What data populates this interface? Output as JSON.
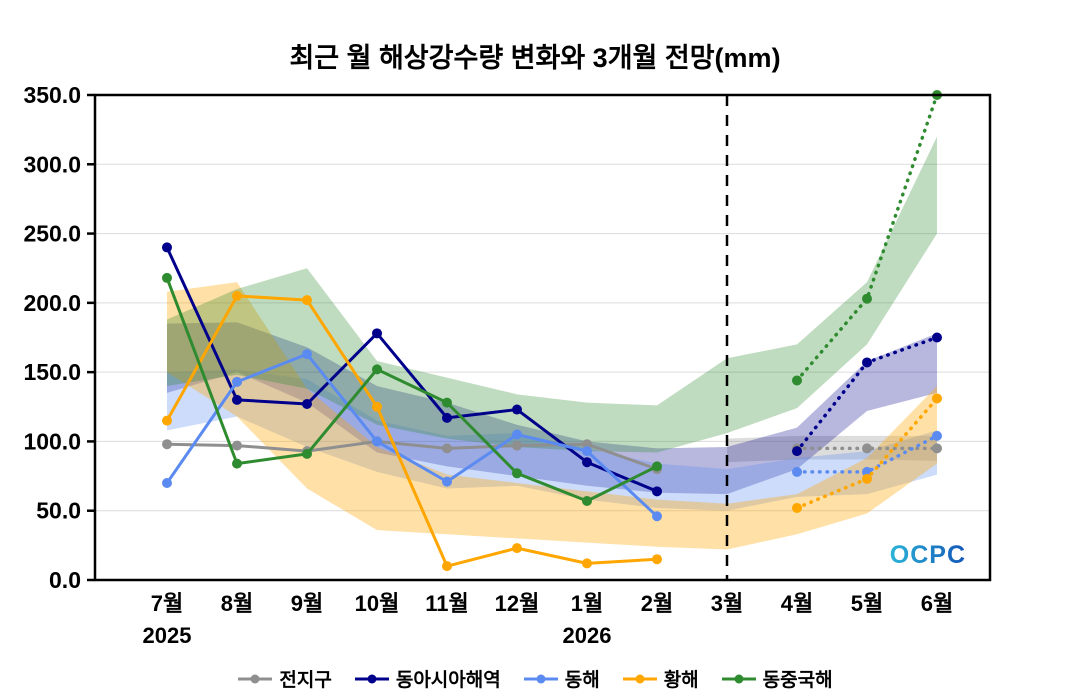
{
  "chart_data": {
    "type": "line",
    "title": "최근 월 해상강수량 변화와 3개월 전망(mm)",
    "ylim": [
      0,
      350
    ],
    "yticks": [
      0,
      50,
      100,
      150,
      200,
      250,
      300,
      350
    ],
    "ytick_labels": [
      "0.0",
      "50.0",
      "100.0",
      "150.0",
      "200.0",
      "250.0",
      "300.0",
      "350.0"
    ],
    "categories": [
      "7월",
      "8월",
      "9월",
      "10월",
      "11월",
      "12월",
      "1월",
      "2월",
      "3월",
      "4월",
      "5월",
      "6월"
    ],
    "year_labels": [
      {
        "index": 0,
        "label": "2025"
      },
      {
        "index": 6,
        "label": "2026"
      }
    ],
    "forecast_divider_index": 8,
    "observed_range": [
      0,
      7
    ],
    "forecast_range": [
      9,
      11
    ],
    "grid": true,
    "legend_position": "bottom",
    "watermark": "OCPC",
    "series": [
      {
        "key": "global",
        "name": "전지구",
        "color": "#8f8f8f",
        "band_opacity": 0.3,
        "values": [
          98,
          97,
          93,
          100,
          95,
          97,
          98,
          80,
          null,
          95,
          95,
          95
        ],
        "band": [
          null,
          null,
          null,
          null,
          null,
          null,
          null,
          null,
          [
            85,
            102
          ],
          [
            87,
            104
          ],
          [
            87,
            104
          ],
          [
            86,
            104
          ]
        ]
      },
      {
        "key": "east-asia",
        "name": "동아시아해역",
        "color": "#00008b",
        "band_opacity": 0.28,
        "values": [
          240,
          130,
          127,
          178,
          117,
          123,
          85,
          64,
          null,
          93,
          157,
          175
        ],
        "band": [
          [
            135,
            185
          ],
          [
            150,
            186
          ],
          [
            128,
            168
          ],
          [
            92,
            140
          ],
          [
            82,
            128
          ],
          [
            75,
            112
          ],
          [
            68,
            100
          ],
          [
            63,
            95
          ],
          [
            62,
            96
          ],
          [
            80,
            110
          ],
          [
            122,
            158
          ],
          [
            135,
            178
          ]
        ]
      },
      {
        "key": "east-sea",
        "name": "동해",
        "color": "#5b8bf0",
        "band_opacity": 0.3,
        "values": [
          70,
          143,
          163,
          100,
          71,
          105,
          93,
          46,
          null,
          78,
          78,
          104
        ],
        "band": [
          [
            108,
            150
          ],
          [
            118,
            152
          ],
          [
            96,
            145
          ],
          [
            78,
            115
          ],
          [
            66,
            104
          ],
          [
            68,
            106
          ],
          [
            58,
            95
          ],
          [
            52,
            84
          ],
          [
            50,
            80
          ],
          [
            60,
            88
          ],
          [
            62,
            93
          ],
          [
            76,
            108
          ]
        ]
      },
      {
        "key": "yellow-sea",
        "name": "황해",
        "color": "#ffa600",
        "band_opacity": 0.35,
        "values": [
          115,
          205,
          202,
          125,
          10,
          23,
          12,
          15,
          null,
          52,
          73,
          131
        ],
        "band": [
          [
            150,
            208
          ],
          [
            118,
            215
          ],
          [
            66,
            138
          ],
          [
            36,
            96
          ],
          [
            33,
            76
          ],
          [
            30,
            70
          ],
          [
            27,
            64
          ],
          [
            24,
            58
          ],
          [
            22,
            55
          ],
          [
            33,
            62
          ],
          [
            48,
            88
          ],
          [
            84,
            140
          ]
        ]
      },
      {
        "key": "east-china-sea",
        "name": "동중국해",
        "color": "#2f8b2f",
        "band_opacity": 0.3,
        "values": [
          218,
          84,
          91,
          152,
          128,
          77,
          57,
          82,
          null,
          144,
          203,
          350
        ],
        "band": [
          [
            140,
            188
          ],
          [
            148,
            210
          ],
          [
            138,
            225
          ],
          [
            112,
            158
          ],
          [
            102,
            146
          ],
          [
            96,
            134
          ],
          [
            93,
            128
          ],
          [
            92,
            126
          ],
          [
            106,
            160
          ],
          [
            124,
            170
          ],
          [
            170,
            215
          ],
          [
            250,
            320
          ]
        ]
      }
    ]
  }
}
